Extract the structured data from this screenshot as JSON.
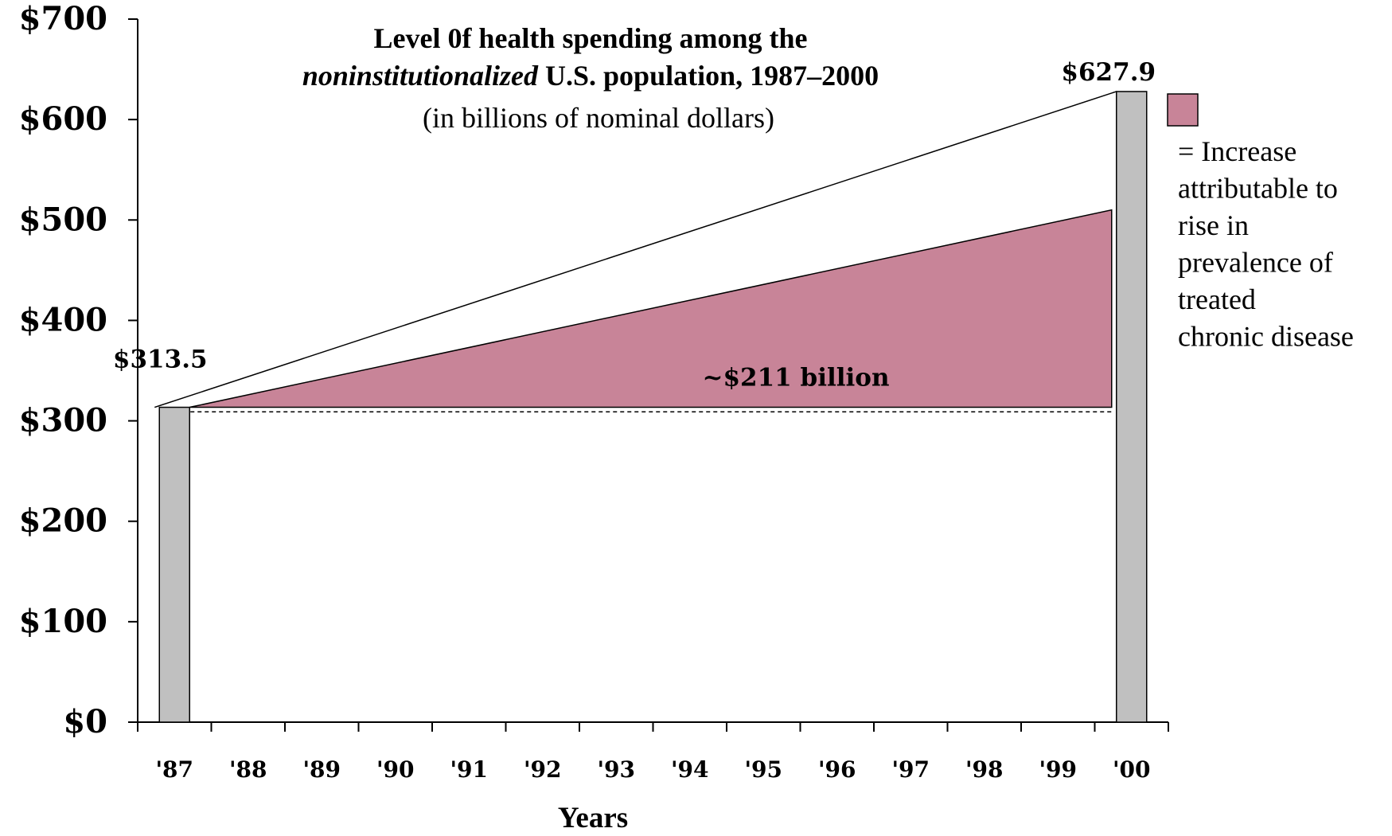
{
  "chart_data": {
    "type": "bar",
    "title_line1": "Level 0f health spending among the",
    "title_line2_italic": "noninstitutionalized",
    "title_line2_rest": " U.S. population, 1987–2000",
    "subtitle": "(in billions of nominal dollars)",
    "xlabel": "Years",
    "ylabel": "",
    "ylim": [
      0,
      700
    ],
    "y_ticks": [
      0,
      100,
      200,
      300,
      400,
      500,
      600,
      700
    ],
    "y_tick_labels": [
      "$0",
      "$100",
      "$200",
      "$300",
      "$400",
      "$500",
      "$600",
      "$700"
    ],
    "categories": [
      "'87",
      "'88",
      "'89",
      "'90",
      "'91",
      "'92",
      "'93",
      "'94",
      "'95",
      "'96",
      "'97",
      "'98",
      "'99",
      "'00"
    ],
    "bars": [
      {
        "category": "'87",
        "value": 313.5,
        "label": "$313.5"
      },
      {
        "category": "'00",
        "value": 627.9,
        "label": "$627.9"
      }
    ],
    "increase_area": {
      "start_value": 313.5,
      "end_value": 510,
      "baseline": 313.5,
      "label": "~$211 billion"
    },
    "dashed_baseline_value": 309,
    "legend": {
      "placement": "right",
      "lines": [
        "= Increase",
        "attributable to",
        "rise in",
        "prevalence of",
        "treated",
        "chronic disease"
      ]
    },
    "colors": {
      "bar": "#c0c0c0",
      "area": "#c88498",
      "axis": "#000000"
    }
  }
}
